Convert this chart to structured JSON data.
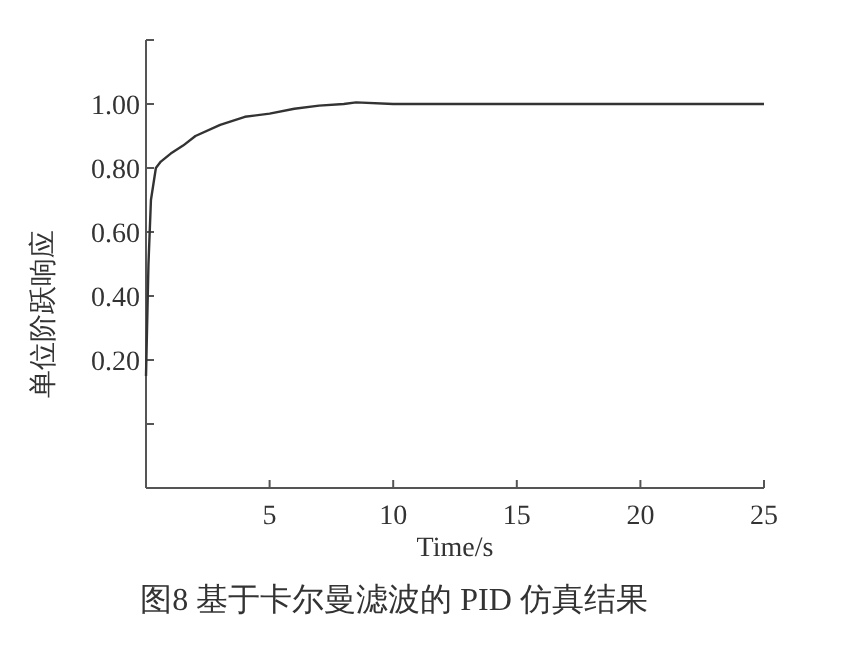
{
  "chart_data": {
    "type": "line",
    "title": "图8 基于卡尔曼滤波的 PID 仿真结果",
    "xlabel": "Time/s",
    "ylabel": "单位阶跃响应",
    "x": [
      0,
      0.1,
      0.2,
      0.4,
      0.6,
      1,
      1.5,
      2,
      3,
      4,
      5,
      6,
      7,
      8,
      8.5,
      10,
      15,
      20,
      25
    ],
    "series": [
      {
        "color": "#333333",
        "values": [
          0.15,
          0.5,
          0.7,
          0.8,
          0.82,
          0.845,
          0.87,
          0.9,
          0.935,
          0.96,
          0.97,
          0.985,
          0.995,
          1.0,
          1.005,
          1.0,
          1.0,
          1.0,
          1.0
        ]
      }
    ],
    "xlim": [
      0,
      25
    ],
    "xticks": [
      {
        "value": 0,
        "label": null
      },
      5,
      10,
      15,
      20,
      25
    ],
    "ylim": [
      -0.2,
      1.2
    ],
    "yticks": [
      {
        "value": 0,
        "label": null
      },
      {
        "value": 0.2,
        "label": "0.20"
      },
      {
        "value": 0.4,
        "label": "0.40"
      },
      {
        "value": 0.6,
        "label": "0.60"
      },
      {
        "value": 0.8,
        "label": "0.80"
      },
      {
        "value": 1,
        "label": "1.00"
      },
      {
        "value": 1.2,
        "label": null
      }
    ],
    "grid": false,
    "marker": "none",
    "line_style": "solid"
  }
}
